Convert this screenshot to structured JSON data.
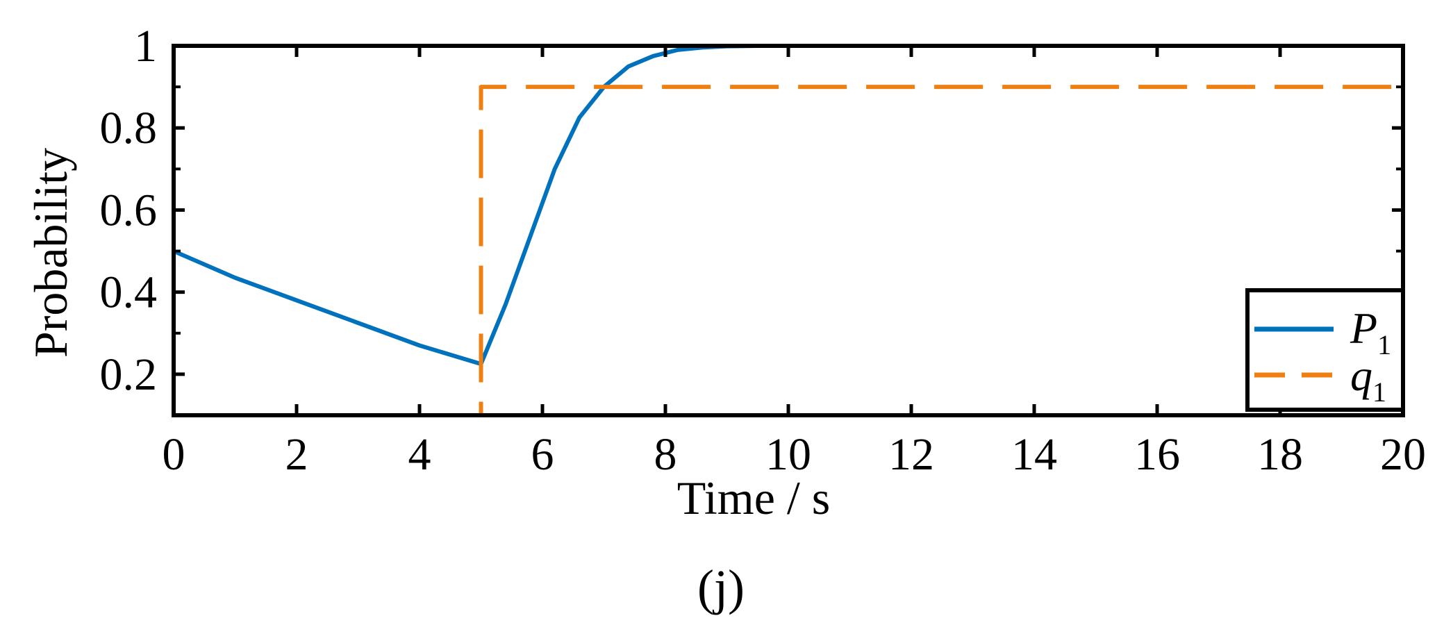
{
  "chart_data": {
    "type": "line",
    "title": "",
    "xlabel": "Time / s",
    "ylabel": "Probability",
    "caption": "(j)",
    "xlim": [
      0,
      20
    ],
    "ylim": [
      0.1,
      1.0
    ],
    "xticks": [
      0,
      2,
      4,
      6,
      8,
      10,
      12,
      14,
      16,
      18,
      20
    ],
    "xtick_labels": [
      "0",
      "2",
      "4",
      "6",
      "8",
      "10",
      "12",
      "14",
      "16",
      "18",
      "20"
    ],
    "yticks": [
      0.2,
      0.4,
      0.6,
      0.8,
      1.0
    ],
    "ytick_labels": [
      "0.2",
      "0.4",
      "0.6",
      "0.8",
      "1"
    ],
    "y_minor_ticks": [
      0.1,
      0.3,
      0.5,
      0.7,
      0.9
    ],
    "grid": false,
    "legend": {
      "placement": "bottom-right"
    },
    "series": [
      {
        "name": "P",
        "name_subscript": "1",
        "color": "#0072BD",
        "style": "solid",
        "x": [
          0,
          1,
          2,
          3,
          4,
          5,
          5.4,
          5.8,
          6.2,
          6.6,
          7.0,
          7.4,
          7.8,
          8.2,
          8.6,
          9.0,
          9.5,
          10,
          12,
          14,
          16,
          18,
          20
        ],
        "y": [
          0.5,
          0.435,
          0.38,
          0.325,
          0.27,
          0.225,
          0.37,
          0.535,
          0.7,
          0.825,
          0.9,
          0.95,
          0.975,
          0.99,
          0.996,
          0.999,
          1.0,
          1.0,
          1.0,
          1.0,
          1.0,
          1.0,
          1.0
        ]
      },
      {
        "name": "q",
        "name_subscript": "1",
        "color": "#F07F12",
        "style": "dashed",
        "x": [
          0,
          5,
          5,
          20
        ],
        "y": [
          0.1,
          0.1,
          0.9,
          0.9
        ]
      }
    ]
  }
}
